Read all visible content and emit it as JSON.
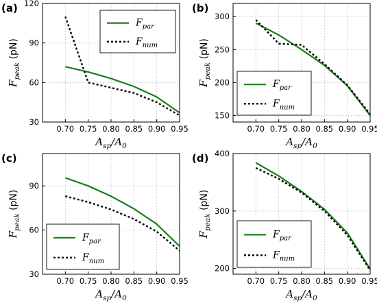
{
  "colors": {
    "par": "#1a7f1a",
    "num": "#000000"
  },
  "chart_data": [
    {
      "panel": "(a)",
      "type": "line",
      "xlabel_main": "A",
      "xlabel_sub1": "sp",
      "xlabel_mid": "/A",
      "xlabel_sub2": "0",
      "ylabel_main": "F",
      "ylabel_sub": "peak",
      "ylabel_unit": "(pN)",
      "xlim": [
        0.65,
        0.95
      ],
      "ylim": [
        30,
        120
      ],
      "xticks": [
        "0.70",
        "0.75",
        "0.80",
        "0.85",
        "0.90",
        "0.95"
      ],
      "yticks": [
        "30",
        "60",
        "90",
        "120"
      ],
      "legend_position": "top-right",
      "series": [
        {
          "name_main": "F",
          "name_sub": "par",
          "style": "solid",
          "x": [
            0.7,
            0.75,
            0.8,
            0.85,
            0.9,
            0.95
          ],
          "y": [
            72,
            68,
            63,
            57,
            49,
            37
          ]
        },
        {
          "name_main": "F",
          "name_sub": "num",
          "style": "dotted",
          "x": [
            0.7,
            0.75,
            0.8,
            0.85,
            0.9,
            0.95
          ],
          "y": [
            110,
            60,
            56,
            52,
            45,
            35
          ]
        }
      ]
    },
    {
      "panel": "(b)",
      "type": "line",
      "xlabel_main": "A",
      "xlabel_sub1": "sp",
      "xlabel_mid": "/A",
      "xlabel_sub2": "0",
      "ylabel_main": "F",
      "ylabel_sub": "peak",
      "ylabel_unit": "(pN)",
      "xlim": [
        0.65,
        0.95
      ],
      "ylim": [
        140,
        320
      ],
      "xticks": [
        "0.70",
        "0.75",
        "0.80",
        "0.85",
        "0.90",
        "0.95"
      ],
      "yticks": [
        "150",
        "200",
        "250",
        "300"
      ],
      "legend_position": "bottom-left",
      "series": [
        {
          "name_main": "F",
          "name_sub": "par",
          "style": "solid",
          "x": [
            0.7,
            0.75,
            0.8,
            0.85,
            0.9,
            0.95
          ],
          "y": [
            290,
            272,
            250,
            226,
            195,
            150
          ]
        },
        {
          "name_main": "F",
          "name_sub": "num",
          "style": "dotted",
          "x": [
            0.7,
            0.75,
            0.8,
            0.85,
            0.9,
            0.95
          ],
          "y": [
            295,
            259,
            257,
            228,
            196,
            152
          ]
        }
      ]
    },
    {
      "panel": "(c)",
      "type": "line",
      "xlabel_main": "A",
      "xlabel_sub1": "sp",
      "xlabel_mid": "/A",
      "xlabel_sub2": "0",
      "ylabel_main": "F",
      "ylabel_sub": "peak",
      "ylabel_unit": "(pN)",
      "xlim": [
        0.65,
        0.95
      ],
      "ylim": [
        30,
        112
      ],
      "xticks": [
        "0.70",
        "0.75",
        "0.80",
        "0.85",
        "0.90",
        "0.95"
      ],
      "yticks": [
        "30",
        "60",
        "90"
      ],
      "legend_position": "bottom-left",
      "series": [
        {
          "name_main": "F",
          "name_sub": "par",
          "style": "solid",
          "x": [
            0.7,
            0.75,
            0.8,
            0.85,
            0.9,
            0.95
          ],
          "y": [
            95.5,
            90,
            83,
            74.5,
            64,
            49
          ]
        },
        {
          "name_main": "F",
          "name_sub": "num",
          "style": "dotted",
          "x": [
            0.7,
            0.75,
            0.8,
            0.85,
            0.9,
            0.95
          ],
          "y": [
            83,
            79,
            74,
            67.5,
            59,
            46
          ]
        }
      ]
    },
    {
      "panel": "(d)",
      "type": "line",
      "xlabel_main": "A",
      "xlabel_sub1": "sp",
      "xlabel_mid": "/A",
      "xlabel_sub2": "0",
      "ylabel_main": "F",
      "ylabel_sub": "peak",
      "ylabel_unit": "(pN)",
      "xlim": [
        0.65,
        0.95
      ],
      "ylim": [
        190,
        400
      ],
      "xticks": [
        "0.70",
        "0.75",
        "0.80",
        "0.85",
        "0.90",
        "0.95"
      ],
      "yticks": [
        "200",
        "300",
        "400"
      ],
      "legend_position": "bottom-left",
      "series": [
        {
          "name_main": "F",
          "name_sub": "par",
          "style": "solid",
          "x": [
            0.7,
            0.75,
            0.8,
            0.85,
            0.9,
            0.95
          ],
          "y": [
            384,
            361,
            334,
            303,
            262,
            199
          ]
        },
        {
          "name_main": "F",
          "name_sub": "num",
          "style": "dotted",
          "x": [
            0.7,
            0.75,
            0.8,
            0.85,
            0.9,
            0.95
          ],
          "y": [
            375,
            356,
            332,
            300,
            258,
            197
          ]
        }
      ]
    }
  ]
}
